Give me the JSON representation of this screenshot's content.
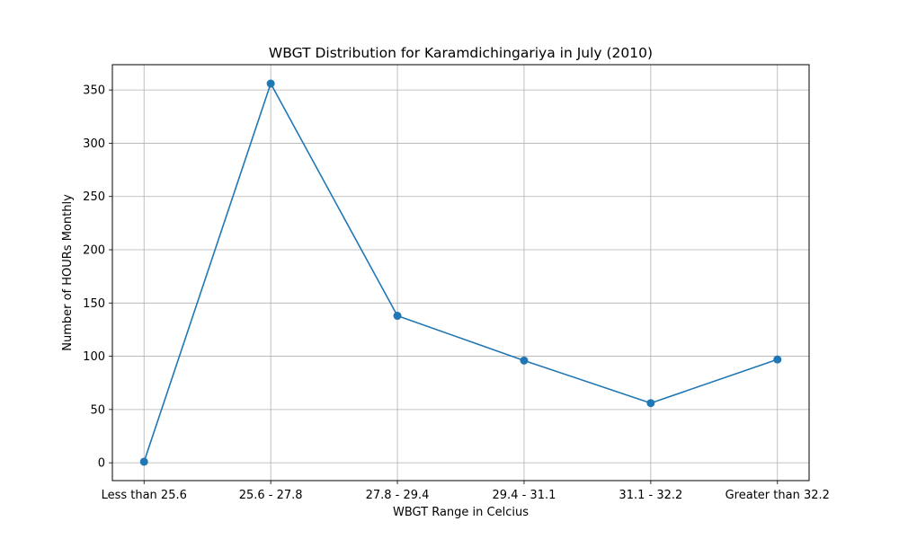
{
  "chart_data": {
    "type": "line",
    "title": "WBGT Distribution for Karamdichingariya in July (2010)",
    "xlabel": "WBGT Range in Celcius",
    "ylabel": "Number of HOURs Monthly",
    "categories": [
      "Less than 25.6",
      "25.6 - 27.8",
      "27.8 - 29.4",
      "29.4 - 31.1",
      "31.1 - 32.2",
      "Greater than 32.2"
    ],
    "series": [
      {
        "values": [
          1,
          356,
          138,
          96,
          56,
          97
        ]
      }
    ],
    "ylim": [
      -16.75,
      373.75
    ],
    "yticks": [
      0,
      50,
      100,
      150,
      200,
      250,
      300,
      350
    ],
    "grid": true,
    "marker": "circle",
    "colors": {
      "line": "#1f77b4",
      "grid": "#b0b0b0",
      "axes": "#000000"
    }
  }
}
